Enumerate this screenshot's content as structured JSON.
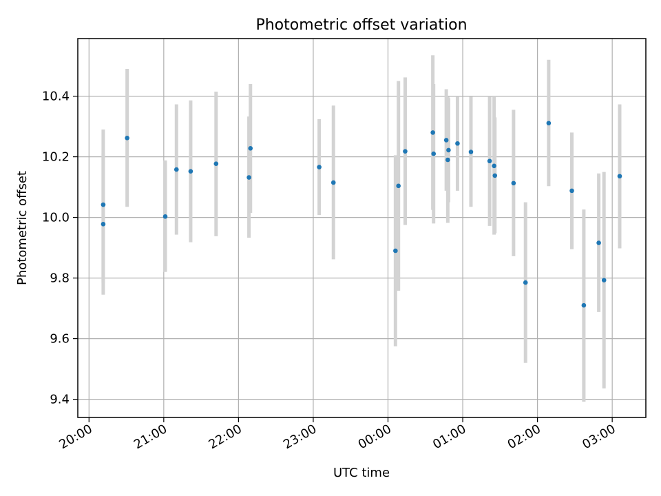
{
  "chart_data": {
    "type": "scatter",
    "title": "Photometric offset variation",
    "xlabel": "UTC time",
    "ylabel": "Photometric offset",
    "x_unit": "UTC time, hours relative to 00:00 (negative = previous evening)",
    "xlim": [
      -4.15,
      3.45
    ],
    "ylim": [
      9.34,
      10.59
    ],
    "x_ticks": [
      {
        "value": -4,
        "label": "20:00"
      },
      {
        "value": -3,
        "label": "21:00"
      },
      {
        "value": -2,
        "label": "22:00"
      },
      {
        "value": -1,
        "label": "23:00"
      },
      {
        "value": 0,
        "label": "00:00"
      },
      {
        "value": 1,
        "label": "01:00"
      },
      {
        "value": 2,
        "label": "02:00"
      },
      {
        "value": 3,
        "label": "03:00"
      }
    ],
    "y_ticks": [
      {
        "value": 9.4,
        "label": "9.4"
      },
      {
        "value": 9.6,
        "label": "9.6"
      },
      {
        "value": 9.8,
        "label": "9.8"
      },
      {
        "value": 10.0,
        "label": "10.0"
      },
      {
        "value": 10.2,
        "label": "10.2"
      },
      {
        "value": 10.4,
        "label": "10.4"
      }
    ],
    "grid": true,
    "point_color": "#1f77b4",
    "errorbar_color": "#d3d3d3",
    "points": [
      {
        "x": -3.81,
        "y": 10.042,
        "lo": 9.785,
        "hi": 10.29
      },
      {
        "x": -3.81,
        "y": 9.978,
        "lo": 9.745,
        "hi": 10.21
      },
      {
        "x": -3.49,
        "y": 10.262,
        "lo": 10.035,
        "hi": 10.49
      },
      {
        "x": -2.98,
        "y": 10.003,
        "lo": 9.82,
        "hi": 10.188
      },
      {
        "x": -2.83,
        "y": 10.158,
        "lo": 9.943,
        "hi": 10.373
      },
      {
        "x": -2.64,
        "y": 10.152,
        "lo": 9.918,
        "hi": 10.386
      },
      {
        "x": -2.3,
        "y": 10.177,
        "lo": 9.938,
        "hi": 10.415
      },
      {
        "x": -1.86,
        "y": 10.132,
        "lo": 9.933,
        "hi": 10.333
      },
      {
        "x": -1.84,
        "y": 10.228,
        "lo": 10.015,
        "hi": 10.44
      },
      {
        "x": -0.92,
        "y": 10.166,
        "lo": 10.008,
        "hi": 10.324
      },
      {
        "x": -0.73,
        "y": 10.115,
        "lo": 9.862,
        "hi": 10.369
      },
      {
        "x": 0.1,
        "y": 9.89,
        "lo": 9.575,
        "hi": 10.205
      },
      {
        "x": 0.14,
        "y": 10.104,
        "lo": 9.758,
        "hi": 10.45
      },
      {
        "x": 0.23,
        "y": 10.218,
        "lo": 9.975,
        "hi": 10.462
      },
      {
        "x": 0.6,
        "y": 10.28,
        "lo": 10.025,
        "hi": 10.535
      },
      {
        "x": 0.61,
        "y": 10.21,
        "lo": 9.98,
        "hi": 10.44
      },
      {
        "x": 0.78,
        "y": 10.255,
        "lo": 10.088,
        "hi": 10.423
      },
      {
        "x": 0.8,
        "y": 10.19,
        "lo": 9.982,
        "hi": 10.398
      },
      {
        "x": 0.81,
        "y": 10.222,
        "lo": 10.05,
        "hi": 10.394
      },
      {
        "x": 0.93,
        "y": 10.244,
        "lo": 10.088,
        "hi": 10.4
      },
      {
        "x": 1.11,
        "y": 10.216,
        "lo": 10.035,
        "hi": 10.398
      },
      {
        "x": 1.36,
        "y": 10.186,
        "lo": 9.972,
        "hi": 10.4
      },
      {
        "x": 1.42,
        "y": 10.17,
        "lo": 9.943,
        "hi": 10.397
      },
      {
        "x": 1.43,
        "y": 10.138,
        "lo": 9.948,
        "hi": 10.33
      },
      {
        "x": 1.68,
        "y": 10.113,
        "lo": 9.872,
        "hi": 10.355
      },
      {
        "x": 1.84,
        "y": 9.785,
        "lo": 9.52,
        "hi": 10.05
      },
      {
        "x": 2.15,
        "y": 10.311,
        "lo": 10.103,
        "hi": 10.52
      },
      {
        "x": 2.46,
        "y": 10.088,
        "lo": 9.895,
        "hi": 10.28
      },
      {
        "x": 2.62,
        "y": 9.71,
        "lo": 9.392,
        "hi": 10.026
      },
      {
        "x": 2.82,
        "y": 9.916,
        "lo": 9.688,
        "hi": 10.145
      },
      {
        "x": 2.89,
        "y": 9.793,
        "lo": 9.436,
        "hi": 10.15
      },
      {
        "x": 3.1,
        "y": 10.136,
        "lo": 9.898,
        "hi": 10.373
      }
    ]
  }
}
